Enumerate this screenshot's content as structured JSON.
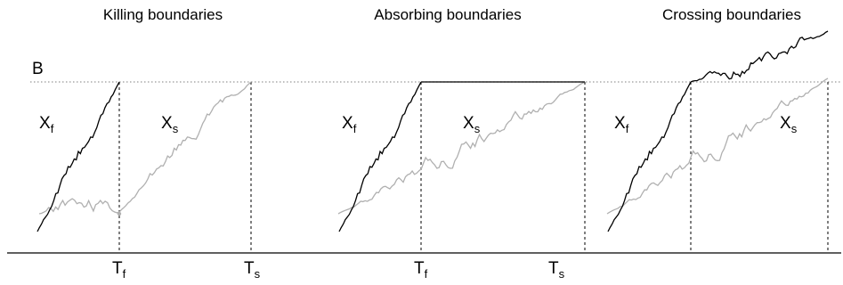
{
  "panels": [
    {
      "title": "Killing boundaries",
      "fast_label": "X",
      "fast_sub": "f",
      "slow_label": "X",
      "slow_sub": "s",
      "tf_label": "T",
      "tf_sub": "f",
      "ts_label": "T",
      "ts_sub": "s"
    },
    {
      "title": "Absorbing boundaries",
      "fast_label": "X",
      "fast_sub": "f",
      "slow_label": "X",
      "slow_sub": "s",
      "tf_label": "T",
      "tf_sub": "f",
      "ts_label": "T",
      "ts_sub": "s"
    },
    {
      "title": "Crossing boundaries",
      "fast_label": "X",
      "fast_sub": "f",
      "slow_label": "X",
      "slow_sub": "s"
    }
  ],
  "boundary_label": "B",
  "colors": {
    "fast_path": "#000000",
    "slow_path": "#b0b0b0",
    "boundary": "#999999",
    "axis": "#000000"
  }
}
